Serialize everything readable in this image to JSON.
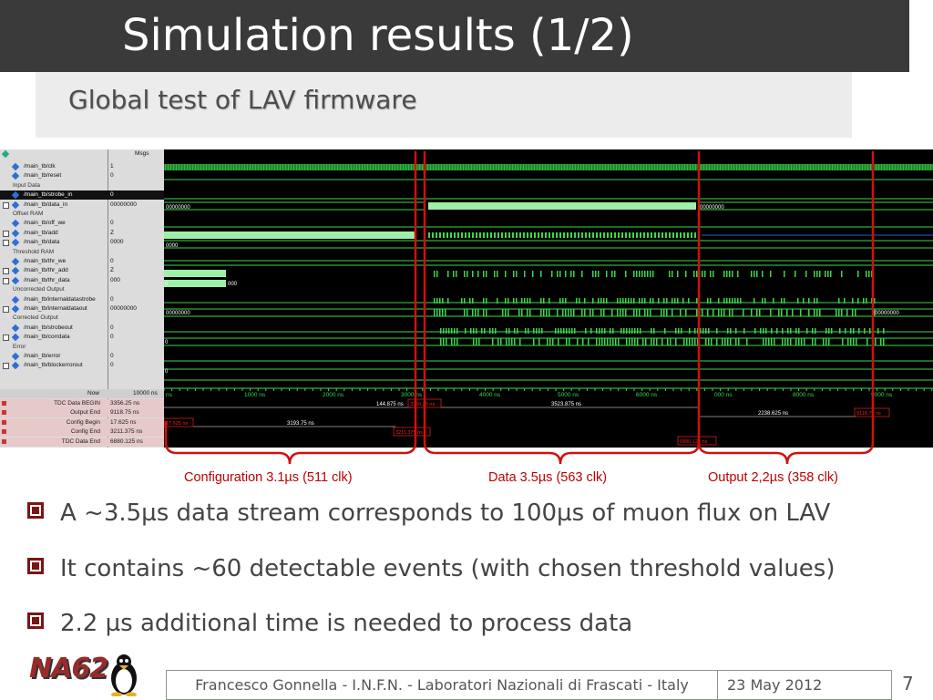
{
  "slide": {
    "title": "Simulation results (1/2)",
    "subtitle": "Global test of LAV firmware",
    "page_number": "7"
  },
  "simulator": {
    "msgs_label": "Msgs",
    "signals": [
      {
        "name": "/main_tb/clk",
        "value": "1",
        "kind": "signal"
      },
      {
        "name": "/main_tb/reset",
        "value": "0",
        "kind": "signal"
      },
      {
        "name": "Input Data",
        "value": "",
        "kind": "group"
      },
      {
        "name": "/main_tb/strobe_in",
        "value": "0",
        "kind": "selected"
      },
      {
        "name": "/main_tb/data_in",
        "value": "00000000",
        "kind": "bus"
      },
      {
        "name": "Offset RAM",
        "value": "",
        "kind": "group"
      },
      {
        "name": "/main_tb/off_we",
        "value": "0",
        "kind": "signal"
      },
      {
        "name": "/main_tb/add",
        "value": "Z",
        "kind": "bus"
      },
      {
        "name": "/main_tb/data",
        "value": "0000",
        "kind": "bus"
      },
      {
        "name": "Threshold RAM",
        "value": "",
        "kind": "group"
      },
      {
        "name": "/main_tb/thr_we",
        "value": "0",
        "kind": "signal"
      },
      {
        "name": "/main_tb/thr_add",
        "value": "Z",
        "kind": "bus"
      },
      {
        "name": "/main_tb/thr_data",
        "value": "000",
        "kind": "bus"
      },
      {
        "name": "Uncorrected Output",
        "value": "",
        "kind": "group"
      },
      {
        "name": "/main_tb/internaldatastrobe",
        "value": "0",
        "kind": "signal"
      },
      {
        "name": "/main_tb/internaldataout",
        "value": "00000000",
        "kind": "bus"
      },
      {
        "name": "Corrected Output",
        "value": "",
        "kind": "group"
      },
      {
        "name": "/main_tb/strobeout",
        "value": "0",
        "kind": "signal"
      },
      {
        "name": "/main_tb/corrdata",
        "value": "0",
        "kind": "bus"
      },
      {
        "name": "Error",
        "value": "",
        "kind": "group"
      },
      {
        "name": "/main_tb/error",
        "value": "0",
        "kind": "signal"
      },
      {
        "name": "/main_tb/blockerrorout",
        "value": "0",
        "kind": "bus"
      }
    ],
    "now_label": "Now",
    "now_value": "10000 ns",
    "cursors": [
      {
        "name": "TDC Data BEGIN",
        "value": "3356.25 ns"
      },
      {
        "name": "Output End",
        "value": "9118.75 ns"
      },
      {
        "name": "Config Begin",
        "value": "17.625 ns"
      },
      {
        "name": "Config End",
        "value": "3211.375 ns"
      },
      {
        "name": "TDC Data End",
        "value": "6880.125 ns"
      }
    ],
    "time_ticks": [
      "ns",
      "1000 ns",
      "2000 ns",
      "3000 ns",
      "4000 ns",
      "5000 ns",
      "6000 ns",
      "000 ns",
      "8000 ns",
      "9000 ns"
    ],
    "bus_values": {
      "data_in_left": "00000000",
      "data_in_right": "00000000",
      "data_left": "0000",
      "thr_data_left": "0",
      "thr_data_mid": "000",
      "internaldataout_left": "00000000",
      "internaldataout_right": "00000000",
      "corrdata_left": "0",
      "blockerrorout_left": "0"
    },
    "cursor_deltas": {
      "d1": "144.875 ns",
      "d2": "3523.875 ns",
      "d3": "2238.625 ns",
      "d4": "3193.75 ns"
    },
    "cursor_tags": {
      "tdc_begin": "3356.25 ns",
      "output_end": "9118.75 ns",
      "config_begin": "17.625 ns",
      "config_end": "3211.375 ns",
      "tdc_end": "6880.125 ns"
    }
  },
  "annotations": {
    "config": "Configuration 3.1µs (511 clk)",
    "data": "Data 3.5µs (563 clk)",
    "output": "Output 2,2µs (358 clk)"
  },
  "bullets": [
    "A ~3.5µs data stream corresponds to 100µs of muon flux on LAV",
    "It contains ~60 detectable events (with  chosen threshold values)",
    "2.2 µs additional time is needed to process data"
  ],
  "footer": {
    "author": "Francesco Gonnella - I.N.F.N. - Laboratori Nazionali di Frascati - Italy",
    "date": "23 May 2012"
  },
  "logo": {
    "text": "NA62"
  },
  "colors": {
    "accent_red": "#c00000",
    "wave_green": "#3bd94a",
    "bullet": "#7b1414",
    "title_bg": "#3a3a3a"
  }
}
